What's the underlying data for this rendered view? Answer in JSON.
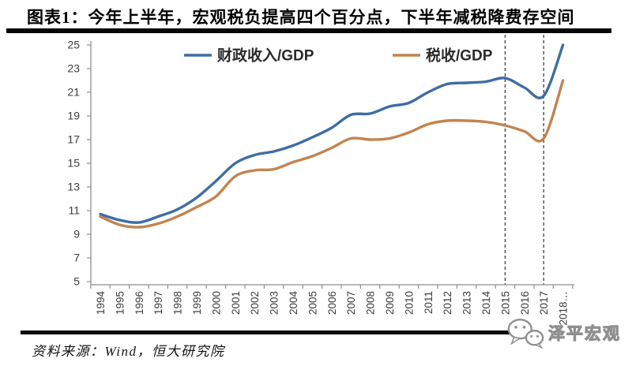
{
  "title": "图表1：今年上半年，宏观税负提高四个百分点，下半年减税降费存空间",
  "source": "资料来源：Wind，恒大研究院",
  "watermark": "泽平宏观",
  "colors": {
    "fiscal_line": "#3F6DA5",
    "tax_line": "#C28450",
    "axis": "#8f8f8f",
    "tick_label": "#3d3d3d",
    "dashed_line": "#3f3f3f",
    "legend_text": "#2a2a2a",
    "title_text": "#000000"
  },
  "chart_data": {
    "type": "line",
    "x": [
      "1994",
      "1995",
      "1996",
      "1997",
      "1998",
      "1999",
      "2000",
      "2001",
      "2002",
      "2003",
      "2004",
      "2005",
      "2006",
      "2007",
      "2008",
      "2009",
      "2010",
      "2011",
      "2012",
      "2013",
      "2014",
      "2015",
      "2016",
      "2017",
      "2018…"
    ],
    "series": [
      {
        "name": "财政收入/GDP",
        "color": "#3F6DA5",
        "values": [
          10.7,
          10.2,
          10.0,
          10.5,
          11.1,
          12.1,
          13.5,
          15.0,
          15.7,
          16.0,
          16.5,
          17.2,
          18.0,
          19.1,
          19.2,
          19.8,
          20.1,
          21.0,
          21.7,
          21.8,
          21.9,
          22.2,
          21.4,
          20.7,
          25.0
        ]
      },
      {
        "name": "税收/GDP",
        "color": "#C28450",
        "values": [
          10.5,
          9.8,
          9.6,
          9.9,
          10.5,
          11.3,
          12.2,
          13.9,
          14.4,
          14.5,
          15.1,
          15.6,
          16.3,
          17.1,
          17.0,
          17.1,
          17.6,
          18.3,
          18.6,
          18.6,
          18.5,
          18.2,
          17.7,
          17.1,
          22.0
        ]
      }
    ],
    "xlabel": "",
    "ylabel": "",
    "ylim": [
      5,
      25
    ],
    "ytick_step": 2,
    "grid": false,
    "legend_position": "top",
    "x_tick_label_rotation": -90,
    "dashed_vlines": [
      "2015",
      "2017"
    ]
  }
}
